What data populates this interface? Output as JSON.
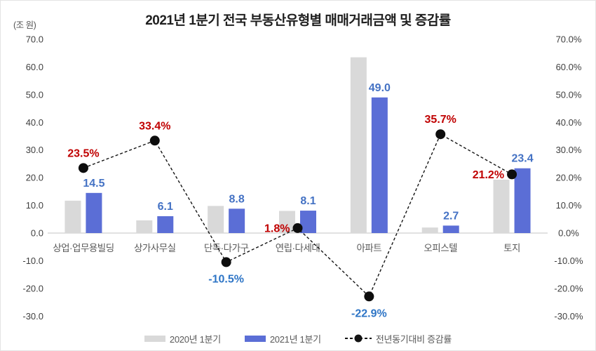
{
  "chart_data": {
    "type": "bar+line combo",
    "title": "2021년 1분기 전국 부동산유형별 매매거래금액 및 증감률",
    "categories": [
      "상업·업무용빌딩",
      "상가사무실",
      "단독·다가구",
      "연립·다세대",
      "아파트",
      "오피스텔",
      "토지"
    ],
    "series": [
      {
        "name": "2020년 1분기",
        "type": "bar",
        "color": "#d9d9d9",
        "values": [
          11.7,
          4.6,
          9.8,
          8.0,
          63.5,
          2.0,
          19.3
        ],
        "data_labels_shown": false
      },
      {
        "name": "2021년 1분기",
        "type": "bar",
        "color": "#5b6ed6",
        "values": [
          14.5,
          6.1,
          8.8,
          8.1,
          49.0,
          2.7,
          23.4
        ],
        "labels": [
          "14.5",
          "6.1",
          "8.8",
          "8.1",
          "49.0",
          "2.7",
          "23.4"
        ],
        "label_color": "#4472c4"
      },
      {
        "name": "전년동기대비 증감률",
        "type": "line",
        "line_style": "dashed",
        "color": "#141414",
        "values": [
          23.5,
          33.4,
          -10.5,
          1.8,
          -22.9,
          35.7,
          21.2
        ],
        "labels": [
          {
            "text": "23.5%",
            "color": "#c00000",
            "pos": "above"
          },
          {
            "text": "33.4%",
            "color": "#c00000",
            "pos": "above"
          },
          {
            "text": "-10.5%",
            "color": "#2e75c6",
            "pos": "below"
          },
          {
            "text": "1.8%",
            "color": "#c00000",
            "pos": "left"
          },
          {
            "text": "-22.9%",
            "color": "#2e75c6",
            "pos": "below"
          },
          {
            "text": "35.7%",
            "color": "#c00000",
            "pos": "above"
          },
          {
            "text": "21.2%",
            "color": "#c00000",
            "pos": "left"
          }
        ]
      }
    ],
    "left_axis": {
      "unit": "(조 원)",
      "min": -30,
      "max": 70,
      "tick_step": 10,
      "ticks": [
        "70.0",
        "60.0",
        "50.0",
        "40.0",
        "30.0",
        "20.0",
        "10.0",
        "0.0",
        "-10.0",
        "-20.0",
        "-30.0"
      ]
    },
    "right_axis": {
      "min": -30,
      "max": 70,
      "tick_step": 10,
      "ticks": [
        "70.0%",
        "60.0%",
        "50.0%",
        "40.0%",
        "30.0%",
        "20.0%",
        "10.0%",
        "0.0%",
        "-10.0%",
        "-20.0%",
        "-30.0%"
      ]
    },
    "grid": "zero-baseline-only",
    "legend_position": "bottom"
  },
  "legend": {
    "items": [
      {
        "label": "2020년 1분기",
        "marker": "bar-swatch",
        "color": "#d9d9d9"
      },
      {
        "label": "2021년 1분기",
        "marker": "bar-swatch",
        "color": "#5b6ed6"
      },
      {
        "label": "전년동기대비 증감률",
        "marker": "dashed-line-dot",
        "color": "#141414"
      }
    ]
  }
}
